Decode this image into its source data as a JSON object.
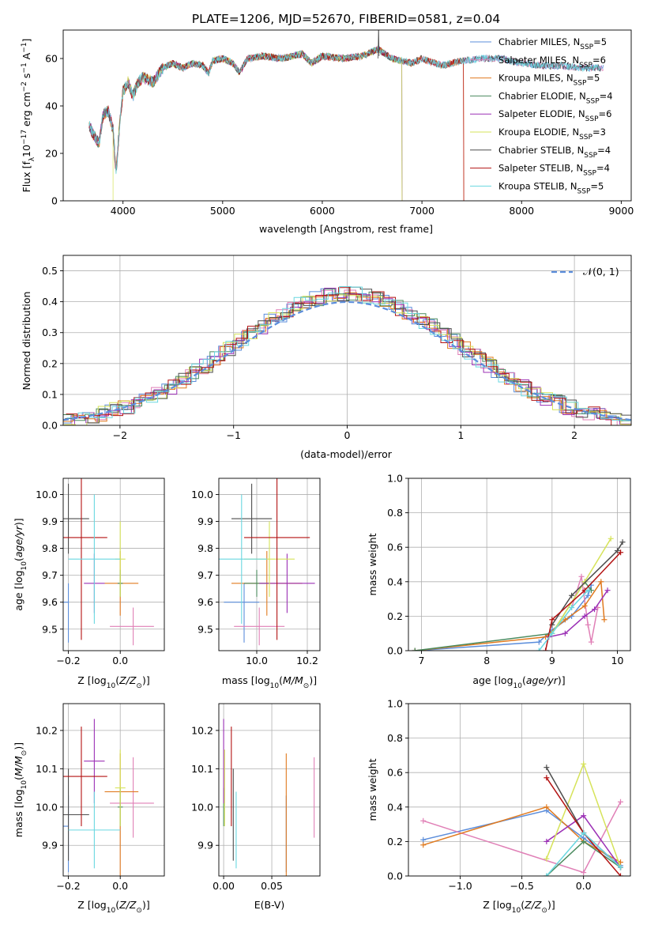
{
  "title": "PLATE=1206, MJD=52670, FIBERID=0581, z=0.04",
  "colors": {
    "chabrier_miles": "#5b8ddb",
    "salpeter_miles": "#e07fb6",
    "kroupa_miles": "#e07a1f",
    "chabrier_elodie": "#4a8a5e",
    "salpeter_elodie": "#9b30b5",
    "kroupa_elodie": "#d6e35a",
    "chabrier_stelib": "#4d4d4d",
    "salpeter_stelib": "#b31212",
    "kroupa_stelib": "#6ad7e0",
    "normal_curve": "#5b8ddb",
    "grid": "#b0b0b0"
  },
  "chart_data": [
    {
      "type": "line",
      "id": "spectrum",
      "xlabel": "wavelength [Angstrom, rest frame]",
      "ylabel": "Flux [f_λ 10^-17 erg cm^-2 s^-1 A^-1]",
      "xlim": [
        3400,
        9100
      ],
      "ylim": [
        0,
        72
      ],
      "xticks": [
        4000,
        5000,
        6000,
        7000,
        8000,
        9000
      ],
      "yticks": [
        0,
        20,
        40,
        60
      ],
      "grid": false,
      "legend_position": "top-right",
      "spectrum_anchor_points": [
        [
          3660,
          32
        ],
        [
          3700,
          28
        ],
        [
          3760,
          24
        ],
        [
          3800,
          36
        ],
        [
          3850,
          38
        ],
        [
          3900,
          30
        ],
        [
          3930,
          12
        ],
        [
          3970,
          34
        ],
        [
          4000,
          46
        ],
        [
          4050,
          50
        ],
        [
          4100,
          44
        ],
        [
          4150,
          50
        ],
        [
          4200,
          52
        ],
        [
          4300,
          50
        ],
        [
          4400,
          56
        ],
        [
          4500,
          58
        ],
        [
          4600,
          56
        ],
        [
          4700,
          58
        ],
        [
          4800,
          57
        ],
        [
          4860,
          54
        ],
        [
          4900,
          59
        ],
        [
          5000,
          60
        ],
        [
          5100,
          58
        ],
        [
          5170,
          54
        ],
        [
          5250,
          60
        ],
        [
          5400,
          61
        ],
        [
          5600,
          60
        ],
        [
          5800,
          62
        ],
        [
          5890,
          58
        ],
        [
          6000,
          61
        ],
        [
          6200,
          60
        ],
        [
          6400,
          61
        ],
        [
          6560,
          64
        ],
        [
          6700,
          60
        ],
        [
          6900,
          58
        ],
        [
          7000,
          60
        ],
        [
          7200,
          57
        ],
        [
          7400,
          59
        ],
        [
          7600,
          60
        ],
        [
          7800,
          60
        ],
        [
          8000,
          58
        ],
        [
          8200,
          57
        ],
        [
          8400,
          57
        ],
        [
          8600,
          56
        ],
        [
          8800,
          56
        ]
      ],
      "series": [
        {
          "name": "Chabrier MILES, N_SSP=5",
          "key": "chabrier_miles"
        },
        {
          "name": "Salpeter MILES, N_SSP=6",
          "key": "salpeter_miles"
        },
        {
          "name": "Kroupa MILES, N_SSP=5",
          "key": "kroupa_miles",
          "cutoff": 7420
        },
        {
          "name": "Chabrier ELODIE, N_SSP=4",
          "key": "chabrier_elodie",
          "cutoff": 6800
        },
        {
          "name": "Salpeter ELODIE, N_SSP=6",
          "key": "salpeter_elodie",
          "cutoff": 6800
        },
        {
          "name": "Kroupa ELODIE, N_SSP=3",
          "key": "kroupa_elodie",
          "cutoff": 6800,
          "start": 3900
        },
        {
          "name": "Chabrier STELIB, N_SSP=4",
          "key": "chabrier_stelib",
          "cutoff": 8800
        },
        {
          "name": "Salpeter STELIB, N_SSP=4",
          "key": "salpeter_stelib",
          "cutoff": 7420
        },
        {
          "name": "Kroupa STELIB, N_SSP=5",
          "key": "kroupa_stelib",
          "cutoff": 8800
        }
      ],
      "legend_labels": [
        {
          "prefix": "Chabrier MILES, N",
          "sub": "SSP",
          "suffix": "=5"
        },
        {
          "prefix": "Salpeter MILES, N",
          "sub": "SSP",
          "suffix": "=6"
        },
        {
          "prefix": "Kroupa MILES, N",
          "sub": "SSP",
          "suffix": "=5"
        },
        {
          "prefix": "Chabrier ELODIE, N",
          "sub": "SSP",
          "suffix": "=4"
        },
        {
          "prefix": "Salpeter ELODIE, N",
          "sub": "SSP",
          "suffix": "=6"
        },
        {
          "prefix": "Kroupa ELODIE, N",
          "sub": "SSP",
          "suffix": "=3"
        },
        {
          "prefix": "Chabrier STELIB, N",
          "sub": "SSP",
          "suffix": "=4"
        },
        {
          "prefix": "Salpeter STELIB, N",
          "sub": "SSP",
          "suffix": "=4"
        },
        {
          "prefix": "Kroupa STELIB, N",
          "sub": "SSP",
          "suffix": "=5"
        }
      ]
    },
    {
      "type": "line",
      "id": "residuals",
      "xlabel": "(data-model)/error",
      "ylabel": "Normed distribution",
      "xlim": [
        -2.5,
        2.5
      ],
      "ylim": [
        0,
        0.55
      ],
      "xticks": [
        -2,
        -1,
        0,
        1,
        2
      ],
      "yticks": [
        0.0,
        0.1,
        0.2,
        0.3,
        0.4,
        0.5
      ],
      "grid": true,
      "legend": "𝒩(0, 1)",
      "legend_position": "top-right",
      "bin_width": 0.1
    },
    {
      "type": "scatter",
      "id": "age_vs_Z",
      "xlabel": "Z [log10(Z/Z_sun)]",
      "ylabel": "age [log10(age/yr)]",
      "xlim": [
        -0.22,
        0.17
      ],
      "ylim": [
        9.42,
        10.06
      ],
      "xticks": [
        -0.2,
        0.0
      ],
      "yticks": [
        9.5,
        9.6,
        9.7,
        9.8,
        9.9,
        10.0
      ],
      "grid": true
    },
    {
      "type": "scatter",
      "id": "age_vs_mass",
      "xlabel": "mass [log10(M/M_sun)]",
      "ylabel": "",
      "xlim": [
        9.85,
        10.25
      ],
      "ylim": [
        9.42,
        10.06
      ],
      "xticks": [
        10.0,
        10.2
      ],
      "yticks": [
        9.5,
        9.6,
        9.7,
        9.8,
        9.9,
        10.0
      ],
      "grid": true
    },
    {
      "type": "line",
      "id": "weight_vs_age",
      "xlabel": "age [log10(age/yr)]",
      "ylabel": "mass weight",
      "xlim": [
        6.8,
        10.2
      ],
      "ylim": [
        0,
        1.0
      ],
      "xticks": [
        7,
        8,
        9,
        10
      ],
      "yticks": [
        0.0,
        0.2,
        0.4,
        0.6,
        0.8,
        1.0
      ],
      "grid": true
    },
    {
      "type": "scatter",
      "id": "mass_vs_Z",
      "xlabel": "Z [log10(Z/Z_sun)]",
      "ylabel": "mass [log10(M/M_sun)]",
      "xlim": [
        -0.22,
        0.17
      ],
      "ylim": [
        9.82,
        10.27
      ],
      "xticks": [
        -0.2,
        0.0
      ],
      "yticks": [
        9.9,
        10.0,
        10.1,
        10.2
      ],
      "grid": true
    },
    {
      "type": "scatter",
      "id": "mass_vs_ebv",
      "xlabel": "E(B-V)",
      "ylabel": "",
      "xlim": [
        -0.005,
        0.1
      ],
      "ylim": [
        9.82,
        10.27
      ],
      "xticks": [
        0.0,
        0.05
      ],
      "yticks": [
        9.9,
        10.0,
        10.1,
        10.2
      ],
      "grid": true
    },
    {
      "type": "line",
      "id": "weight_vs_Z",
      "xlabel": "Z [log10(Z/Z_sun)]",
      "ylabel": "mass weight",
      "xlim": [
        -1.42,
        0.38
      ],
      "ylim": [
        0,
        1.0
      ],
      "xticks": [
        -1.0,
        -0.5,
        0.0
      ],
      "yticks": [
        0.0,
        0.2,
        0.4,
        0.6,
        0.8,
        1.0
      ],
      "grid": true
    }
  ],
  "models": [
    {
      "key": "chabrier_miles",
      "Z": [
        -0.2,
        0.1,
        0.0
      ],
      "age": [
        9.6,
        0.15,
        0.07
      ],
      "mass": [
        9.95,
        0.08,
        0.06
      ],
      "mass_err_lo": [
        9.965,
        0.12,
        0.08
      ],
      "ebv": [
        0.0,
        0.18,
        0.15
      ],
      "w_age": [
        [
          6.9,
          0.0
        ],
        [
          8.8,
          0.05
        ],
        [
          9.0,
          0.12
        ],
        [
          9.3,
          0.2
        ],
        [
          9.55,
          0.32
        ],
        [
          9.6,
          0.38
        ]
      ],
      "w_Z": [
        [
          -1.3,
          0.21
        ],
        [
          -0.3,
          0.38
        ],
        [
          0.0,
          0.22
        ],
        [
          0.3,
          0.06
        ]
      ]
    },
    {
      "key": "salpeter_miles",
      "Z": [
        0.05,
        0.09,
        0.08
      ],
      "age": [
        9.51,
        0.07,
        0.07
      ],
      "mass": [
        10.01,
        0.1,
        0.1
      ],
      "mass_err_lo": [
        10.01,
        0.09,
        0.12
      ],
      "ebv": [
        0.09,
        0.18,
        0.08
      ],
      "w_age": [
        [
          9.3,
          0.25
        ],
        [
          9.45,
          0.43
        ],
        [
          9.55,
          0.15
        ],
        [
          9.6,
          0.05
        ],
        [
          9.7,
          0.25
        ]
      ],
      "w_Z": [
        [
          -1.3,
          0.32
        ],
        [
          0.0,
          0.02
        ],
        [
          0.3,
          0.43
        ]
      ]
    },
    {
      "key": "kroupa_miles",
      "Z": [
        0.0,
        0.06,
        0.07
      ],
      "age": [
        9.67,
        0.12,
        0.12
      ],
      "mass": [
        10.04,
        0.14,
        0.14
      ],
      "mass_err_lo": [
        10.01,
        0.25,
        0.1
      ],
      "ebv": [
        0.065,
        0.1,
        0.1
      ],
      "w_age": [
        [
          6.9,
          0.0
        ],
        [
          8.9,
          0.08
        ],
        [
          9.2,
          0.18
        ],
        [
          9.5,
          0.26
        ],
        [
          9.75,
          0.4
        ],
        [
          9.8,
          0.18
        ]
      ],
      "w_Z": [
        [
          -1.3,
          0.18
        ],
        [
          -0.3,
          0.4
        ],
        [
          0.0,
          0.2
        ],
        [
          0.3,
          0.08
        ]
      ]
    },
    {
      "key": "chabrier_elodie",
      "Z": [
        0.0,
        0.01,
        0.01
      ],
      "age": [
        9.67,
        0.05,
        0.05
      ],
      "mass": [
        10.0,
        0.05,
        0.05
      ],
      "mass_err_lo": [
        10.01,
        0.05,
        0.05
      ],
      "ebv": [
        0.0,
        0.05,
        0.05
      ],
      "w_age": [
        [
          6.9,
          0.0
        ],
        [
          9.0,
          0.1
        ],
        [
          9.5,
          0.4
        ],
        [
          9.6,
          0.35
        ]
      ],
      "w_Z": [
        [
          -0.3,
          0.0
        ],
        [
          0.0,
          0.2
        ],
        [
          0.3,
          0.05
        ]
      ]
    },
    {
      "key": "salpeter_elodie",
      "Z": [
        -0.1,
        0.04,
        0.04
      ],
      "age": [
        9.67,
        0.11,
        0.11
      ],
      "mass": [
        10.12,
        0.11,
        0.11
      ],
      "mass_err_lo": [
        10.12,
        0.11,
        0.11
      ],
      "ebv": [
        0.0,
        0.23,
        0.18
      ],
      "w_age": [
        [
          8.95,
          0.08
        ],
        [
          9.2,
          0.1
        ],
        [
          9.5,
          0.2
        ],
        [
          9.65,
          0.24
        ],
        [
          9.85,
          0.35
        ]
      ],
      "w_Z": [
        [
          -0.3,
          0.2
        ],
        [
          0.0,
          0.35
        ],
        [
          0.3,
          0.05
        ]
      ]
    },
    {
      "key": "kroupa_elodie",
      "Z": [
        0.0,
        0.02,
        0.02
      ],
      "age": [
        9.76,
        0.14,
        0.14
      ],
      "mass": [
        10.05,
        0.1,
        0.1
      ],
      "mass_err_lo": [
        10.05,
        0.1,
        0.1
      ],
      "ebv": [
        0.0,
        0.14,
        0.14
      ],
      "w_age": [
        [
          9.0,
          0.1
        ],
        [
          9.5,
          0.4
        ],
        [
          9.9,
          0.65
        ]
      ],
      "w_Z": [
        [
          -0.3,
          0.1
        ],
        [
          0.0,
          0.65
        ],
        [
          0.3,
          0.05
        ]
      ]
    },
    {
      "key": "chabrier_stelib",
      "Z": [
        -0.2,
        0.08,
        0.08
      ],
      "age": [
        9.91,
        0.13,
        0.13
      ],
      "mass": [
        9.98,
        0.08,
        0.08
      ],
      "mass_err_lo": [
        9.98,
        0.12,
        0.12
      ],
      "ebv": [
        0.0,
        0.0,
        0.0
      ],
      "w_age": [
        [
          9.0,
          0.15
        ],
        [
          9.3,
          0.32
        ],
        [
          10.0,
          0.58
        ],
        [
          10.08,
          0.63
        ]
      ],
      "w_Z": [
        [
          -0.3,
          0.63
        ],
        [
          0.0,
          0.25
        ],
        [
          0.3,
          0.05
        ]
      ]
    },
    {
      "key": "salpeter_stelib",
      "Z": [
        -0.15,
        0.1,
        0.1
      ],
      "age": [
        9.84,
        0.38,
        0.38
      ],
      "mass": [
        10.08,
        0.13,
        0.13
      ],
      "mass_err_lo": [
        10.08,
        0.13,
        0.13
      ],
      "ebv": [
        0.01,
        0.13,
        0.13
      ],
      "w_age": [
        [
          8.9,
          0.0
        ],
        [
          9.0,
          0.18
        ],
        [
          9.5,
          0.35
        ],
        [
          10.05,
          0.57
        ]
      ],
      "w_Z": [
        [
          -0.3,
          0.57
        ],
        [
          0.0,
          0.25
        ],
        [
          0.3,
          0.0
        ]
      ]
    },
    {
      "key": "kroupa_stelib",
      "Z": [
        -0.1,
        0.1,
        0.1
      ],
      "age": [
        9.76,
        0.24,
        0.24
      ],
      "mass": [
        9.94,
        0.1,
        0.1
      ],
      "mass_err_lo": [
        9.94,
        0.1,
        0.1
      ],
      "ebv": [
        0.013,
        0.2,
        0.15
      ],
      "w_age": [
        [
          8.8,
          0.0
        ],
        [
          9.0,
          0.1
        ],
        [
          9.3,
          0.25
        ],
        [
          9.55,
          0.35
        ]
      ],
      "w_Z": [
        [
          -0.3,
          0.0
        ],
        [
          0.0,
          0.25
        ],
        [
          0.3,
          0.05
        ]
      ]
    }
  ]
}
